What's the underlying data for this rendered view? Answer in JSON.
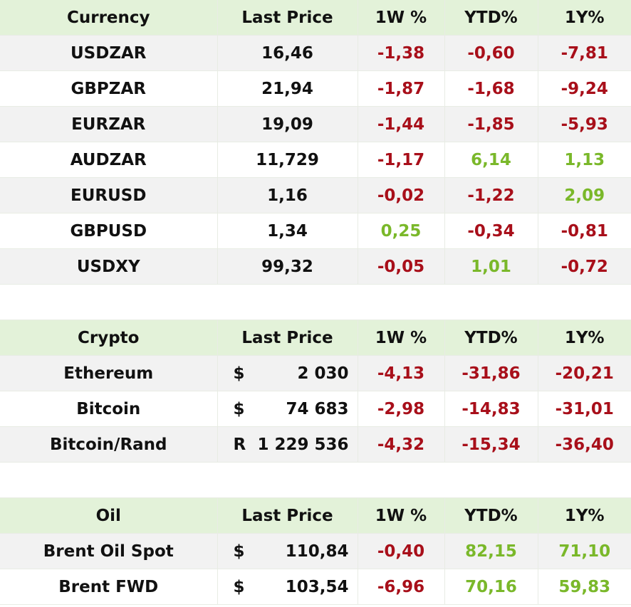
{
  "currency": {
    "headers": [
      "Currency",
      "Last Price",
      "1W %",
      "YTD%",
      "1Y%"
    ],
    "rows": [
      {
        "name": "USDZAR",
        "price": "16,46",
        "w1": "-1,38",
        "w1_dir": "neg",
        "ytd": "-0,60",
        "ytd_dir": "neg",
        "y1": "-7,81",
        "y1_dir": "neg"
      },
      {
        "name": "GBPZAR",
        "price": "21,94",
        "w1": "-1,87",
        "w1_dir": "neg",
        "ytd": "-1,68",
        "ytd_dir": "neg",
        "y1": "-9,24",
        "y1_dir": "neg"
      },
      {
        "name": "EURZAR",
        "price": "19,09",
        "w1": "-1,44",
        "w1_dir": "neg",
        "ytd": "-1,85",
        "ytd_dir": "neg",
        "y1": "-5,93",
        "y1_dir": "neg"
      },
      {
        "name": "AUDZAR",
        "price": "11,729",
        "w1": "-1,17",
        "w1_dir": "neg",
        "ytd": "6,14",
        "ytd_dir": "pos",
        "y1": "1,13",
        "y1_dir": "pos"
      },
      {
        "name": "EURUSD",
        "price": "1,16",
        "w1": "-0,02",
        "w1_dir": "neg",
        "ytd": "-1,22",
        "ytd_dir": "neg",
        "y1": "2,09",
        "y1_dir": "pos"
      },
      {
        "name": "GBPUSD",
        "price": "1,34",
        "w1": "0,25",
        "w1_dir": "pos",
        "ytd": "-0,34",
        "ytd_dir": "neg",
        "y1": "-0,81",
        "y1_dir": "neg"
      },
      {
        "name": "USDXY",
        "price": "99,32",
        "w1": "-0,05",
        "w1_dir": "neg",
        "ytd": "1,01",
        "ytd_dir": "pos",
        "y1": "-0,72",
        "y1_dir": "neg"
      }
    ]
  },
  "crypto": {
    "headers": [
      "Crypto",
      "Last Price",
      "1W %",
      "YTD%",
      "1Y%"
    ],
    "rows": [
      {
        "name": "Ethereum",
        "symbol": "$",
        "amount": "2 030",
        "w1": "-4,13",
        "w1_dir": "neg",
        "ytd": "-31,86",
        "ytd_dir": "neg",
        "y1": "-20,21",
        "y1_dir": "neg"
      },
      {
        "name": "Bitcoin",
        "symbol": "$",
        "amount": "74 683",
        "w1": "-2,98",
        "w1_dir": "neg",
        "ytd": "-14,83",
        "ytd_dir": "neg",
        "y1": "-31,01",
        "y1_dir": "neg"
      },
      {
        "name": "Bitcoin/Rand",
        "symbol": "R",
        "amount": "1 229 536",
        "w1": "-4,32",
        "w1_dir": "neg",
        "ytd": "-15,34",
        "ytd_dir": "neg",
        "y1": "-36,40",
        "y1_dir": "neg"
      }
    ]
  },
  "oil": {
    "headers": [
      "Oil",
      "Last Price",
      "1W %",
      "YTD%",
      "1Y%"
    ],
    "rows": [
      {
        "name": "Brent Oil Spot",
        "symbol": "$",
        "amount": "110,84",
        "w1": "-0,40",
        "w1_dir": "neg",
        "ytd": "82,15",
        "ytd_dir": "pos",
        "y1": "71,10",
        "y1_dir": "pos"
      },
      {
        "name": "Brent FWD",
        "symbol": "$",
        "amount": "103,54",
        "w1": "-6,96",
        "w1_dir": "neg",
        "ytd": "70,16",
        "ytd_dir": "pos",
        "y1": "59,83",
        "y1_dir": "pos"
      }
    ]
  },
  "colors": {
    "header_bg": "#e3f2d9",
    "negative": "#a80f1a",
    "positive": "#7ab82a",
    "row_alt_bg": "#f2f2f2"
  }
}
